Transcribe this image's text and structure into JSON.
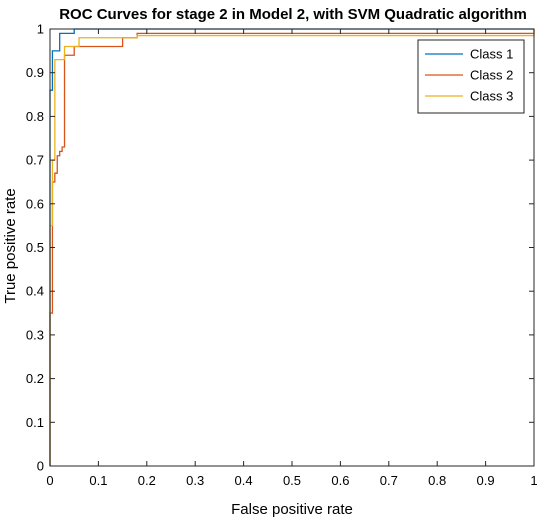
{
  "chart_data": {
    "type": "line",
    "title": "ROC Curves for stage 2 in Model 2, with SVM Quadratic algorithm",
    "xlabel": "False positive rate",
    "ylabel": "True positive rate",
    "xlim": [
      0,
      1
    ],
    "ylim": [
      0,
      1
    ],
    "xticks": [
      "0",
      "0.1",
      "0.2",
      "0.3",
      "0.4",
      "0.5",
      "0.6",
      "0.7",
      "0.8",
      "0.9",
      "1"
    ],
    "yticks": [
      "0",
      "0.1",
      "0.2",
      "0.3",
      "0.4",
      "0.5",
      "0.6",
      "0.7",
      "0.8",
      "0.9",
      "1"
    ],
    "grid": false,
    "legend_position": "top-right",
    "series": [
      {
        "name": "Class 1",
        "color": "#0072BD",
        "points": [
          [
            0,
            0
          ],
          [
            0,
            0.86
          ],
          [
            0.005,
            0.86
          ],
          [
            0.005,
            0.95
          ],
          [
            0.02,
            0.95
          ],
          [
            0.02,
            0.99
          ],
          [
            0.05,
            0.99
          ],
          [
            0.05,
            1.0
          ],
          [
            1.0,
            1.0
          ]
        ]
      },
      {
        "name": "Class 2",
        "color": "#D95319",
        "points": [
          [
            0,
            0
          ],
          [
            0,
            0.35
          ],
          [
            0.005,
            0.35
          ],
          [
            0.005,
            0.65
          ],
          [
            0.01,
            0.65
          ],
          [
            0.01,
            0.67
          ],
          [
            0.015,
            0.67
          ],
          [
            0.015,
            0.71
          ],
          [
            0.02,
            0.71
          ],
          [
            0.02,
            0.72
          ],
          [
            0.025,
            0.72
          ],
          [
            0.025,
            0.73
          ],
          [
            0.03,
            0.73
          ],
          [
            0.03,
            0.94
          ],
          [
            0.05,
            0.94
          ],
          [
            0.05,
            0.96
          ],
          [
            0.15,
            0.96
          ],
          [
            0.15,
            0.98
          ],
          [
            0.18,
            0.98
          ],
          [
            0.18,
            0.99
          ],
          [
            1.0,
            0.99
          ],
          [
            1.0,
            1.0
          ]
        ]
      },
      {
        "name": "Class 3",
        "color": "#EDB120",
        "points": [
          [
            0,
            0
          ],
          [
            0,
            0.55
          ],
          [
            0.005,
            0.55
          ],
          [
            0.005,
            0.7
          ],
          [
            0.01,
            0.7
          ],
          [
            0.01,
            0.93
          ],
          [
            0.03,
            0.93
          ],
          [
            0.03,
            0.96
          ],
          [
            0.06,
            0.96
          ],
          [
            0.06,
            0.98
          ],
          [
            0.18,
            0.98
          ],
          [
            0.18,
            0.985
          ],
          [
            1.0,
            0.985
          ],
          [
            1.0,
            1.0
          ]
        ]
      }
    ]
  }
}
